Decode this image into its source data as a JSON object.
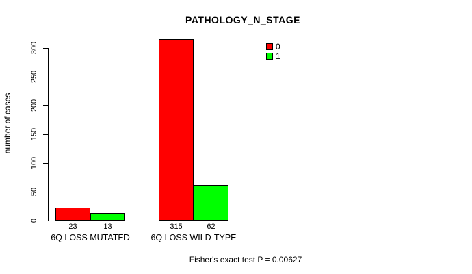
{
  "chart_data": {
    "type": "bar",
    "title": "PATHOLOGY_N_STAGE",
    "xlabel": "",
    "ylabel": "number of cases",
    "ylim": [
      0,
      300
    ],
    "yticks": [
      0,
      50,
      100,
      150,
      200,
      250,
      300
    ],
    "grid": false,
    "legend_position": "top-right inside plot",
    "categories": [
      "6Q LOSS MUTATED",
      "6Q LOSS WILD-TYPE"
    ],
    "series": [
      {
        "name": "0",
        "color": "#FF0000",
        "values": [
          23,
          315
        ]
      },
      {
        "name": "1",
        "color": "#00FF00",
        "values": [
          13,
          62
        ]
      }
    ],
    "annotation": "Fisher's exact test P = 0.00627"
  },
  "colors": {
    "background": "#FFFFFF",
    "axis": "#000000",
    "text": "#000000",
    "series_0": "#FF0000",
    "series_1": "#00FF00"
  }
}
